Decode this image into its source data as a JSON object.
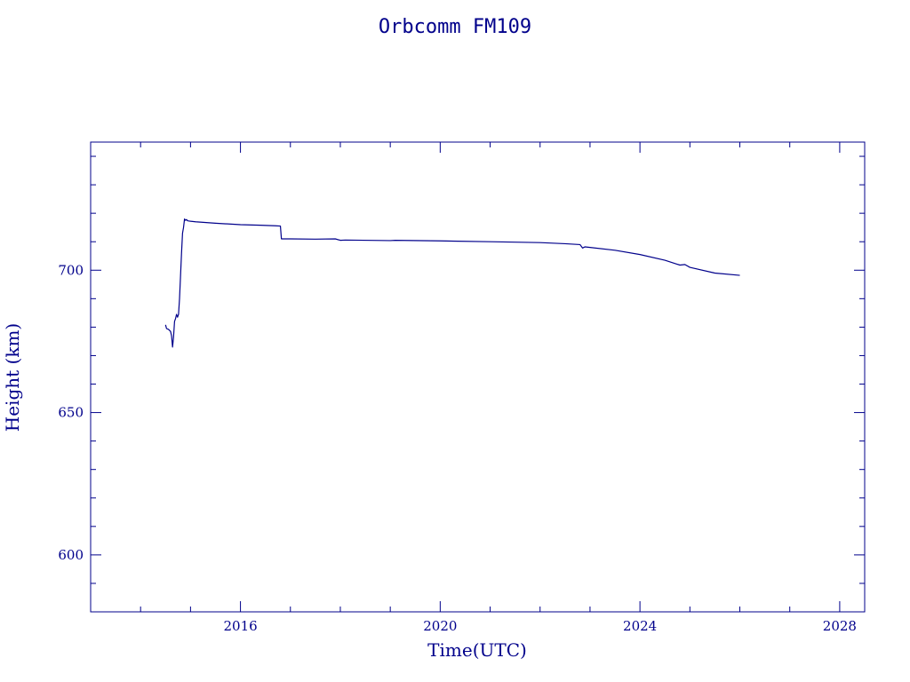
{
  "chart_data": {
    "type": "line",
    "title": "Orbcomm FM109",
    "xlabel": "Time(UTC)",
    "ylabel": "Height (km)",
    "xlim": [
      2013.0,
      2028.5
    ],
    "ylim": [
      580,
      745
    ],
    "x_ticks": [
      2016,
      2020,
      2024,
      2028
    ],
    "y_ticks": [
      600,
      650,
      700
    ],
    "color": "#00008b",
    "grid": false,
    "series": [
      {
        "x": [
          2014.5,
          2014.52,
          2014.56,
          2014.6,
          2014.62,
          2014.64,
          2014.66,
          2014.68,
          2014.7,
          2014.72,
          2014.74,
          2014.76,
          2014.78,
          2014.8,
          2014.82,
          2014.84,
          2014.86,
          2014.88,
          2014.9,
          2014.92,
          2014.94,
          2014.96,
          2015.0,
          2015.1,
          2015.5,
          2016.0,
          2016.4,
          2016.7,
          2016.8,
          2016.82,
          2017.0,
          2017.5,
          2017.9,
          2018.0,
          2018.1,
          2019.0,
          2019.1,
          2020.0,
          2021.0,
          2022.0,
          2022.5,
          2022.8,
          2022.85,
          2022.9,
          2023.0,
          2023.5,
          2024.0,
          2024.5,
          2024.8,
          2024.9,
          2025.0,
          2025.5,
          2026.0
        ],
        "y": [
          680.8,
          679.5,
          679.2,
          678.5,
          677.0,
          673.0,
          676.5,
          682.0,
          683.0,
          684.5,
          683.5,
          684.5,
          690.0,
          698.0,
          706.0,
          713.0,
          715.0,
          718.0,
          717.5,
          717.8,
          717.4,
          717.3,
          717.2,
          717.0,
          716.5,
          716.0,
          715.8,
          715.6,
          715.5,
          711.0,
          711.0,
          710.9,
          711.0,
          710.5,
          710.6,
          710.4,
          710.5,
          710.3,
          710.0,
          709.7,
          709.3,
          709.0,
          707.8,
          708.2,
          708.0,
          707.0,
          705.5,
          703.5,
          701.8,
          702.0,
          701.0,
          699.0,
          698.2
        ]
      }
    ]
  }
}
